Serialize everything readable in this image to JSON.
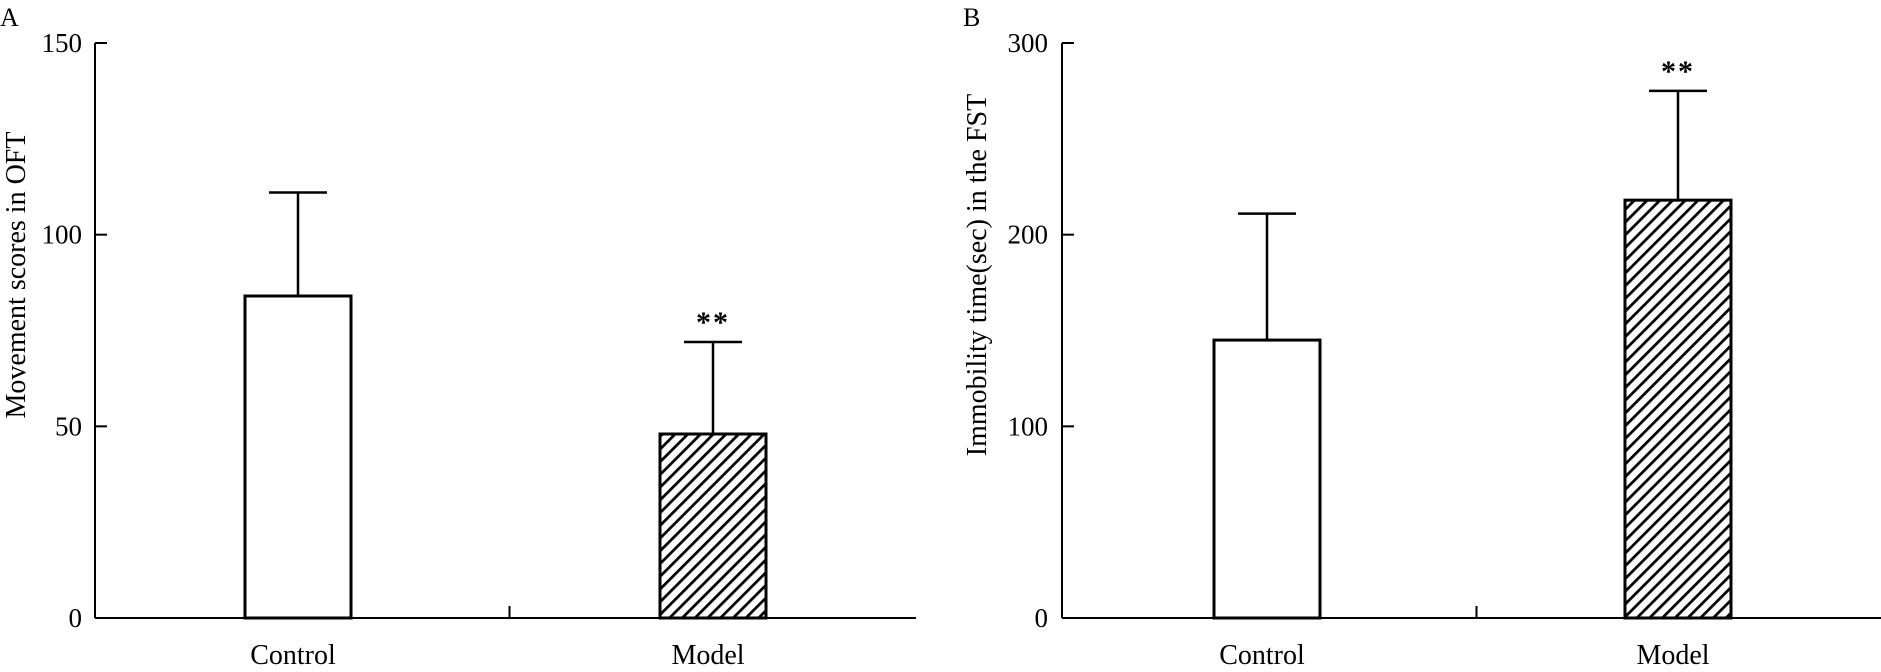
{
  "chart_data": [
    {
      "type": "bar",
      "panel_label": "A",
      "title": "",
      "xlabel": "",
      "ylabel": "Movement scores  in OFT",
      "categories": [
        "Control",
        "Model"
      ],
      "values": [
        84,
        48
      ],
      "error": [
        27,
        24
      ],
      "significance": [
        "",
        "**"
      ],
      "fills": [
        "white",
        "hatched"
      ],
      "ylim": [
        0,
        150
      ],
      "yticks": [
        0,
        50,
        100,
        150
      ],
      "grid": false
    },
    {
      "type": "bar",
      "panel_label": "B",
      "title": "",
      "xlabel": "",
      "ylabel": "Immobility time(sec) in the FST",
      "categories": [
        "Control",
        "Model"
      ],
      "values": [
        145,
        218
      ],
      "error": [
        66,
        57
      ],
      "significance": [
        "",
        "**"
      ],
      "fills": [
        "white",
        "hatched"
      ],
      "ylim": [
        0,
        300
      ],
      "yticks": [
        0,
        100,
        200,
        300
      ],
      "grid": false
    }
  ]
}
